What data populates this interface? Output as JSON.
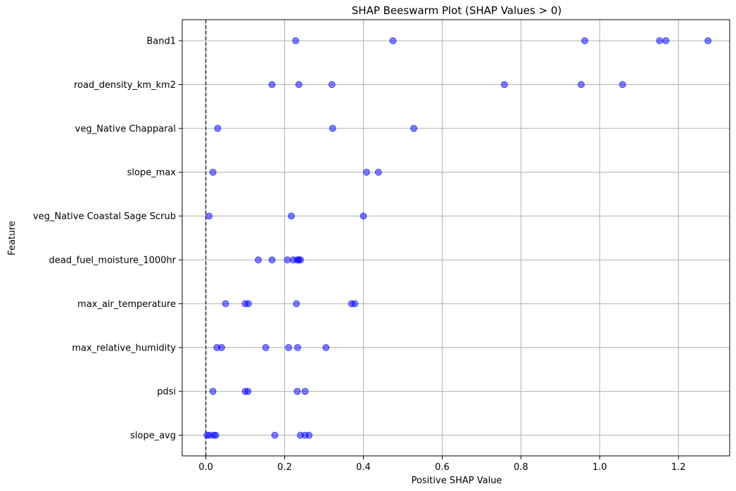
{
  "chart_data": {
    "type": "scatter",
    "title": "SHAP Beeswarm Plot (SHAP Values > 0)",
    "xlabel": "Positive SHAP Value",
    "ylabel": "Feature",
    "xlim": [
      -0.06,
      1.33
    ],
    "xticks": [
      0.0,
      0.2,
      0.4,
      0.6,
      0.8,
      1.0,
      1.2
    ],
    "xtick_labels": [
      "0.0",
      "0.2",
      "0.4",
      "0.6",
      "0.8",
      "1.0",
      "1.2"
    ],
    "grid": true,
    "reference_line_x": 0.0,
    "marker_color": "#0000ff",
    "marker_edge_color": "#0000ff",
    "marker_alpha": 0.5,
    "categories": [
      "Band1",
      "road_density_km_km2",
      "veg_Native Chapparal ",
      "slope_max",
      "veg_Native Coastal Sage Scrub ",
      "dead_fuel_moisture_1000hr",
      "max_air_temperature",
      "max_relative_humidity",
      "pdsi",
      "slope_avg"
    ],
    "points": [
      [
        0.228,
        0.475,
        0.962,
        1.152,
        1.168,
        1.275
      ],
      [
        0.168,
        0.236,
        0.32,
        0.758,
        0.953,
        1.058
      ],
      [
        0.03,
        0.322,
        0.528
      ],
      [
        0.018,
        0.408,
        0.438
      ],
      [
        0.008,
        0.217,
        0.4
      ],
      [
        0.133,
        0.168,
        0.207,
        0.222,
        0.232,
        0.236,
        0.24
      ],
      [
        0.05,
        0.1,
        0.108,
        0.23,
        0.37,
        0.378
      ],
      [
        0.028,
        0.04,
        0.152,
        0.21,
        0.233,
        0.305
      ],
      [
        0.018,
        0.1,
        0.107,
        0.232,
        0.252
      ],
      [
        0.003,
        0.01,
        0.02,
        0.025,
        0.175,
        0.24,
        0.252,
        0.262
      ]
    ]
  }
}
